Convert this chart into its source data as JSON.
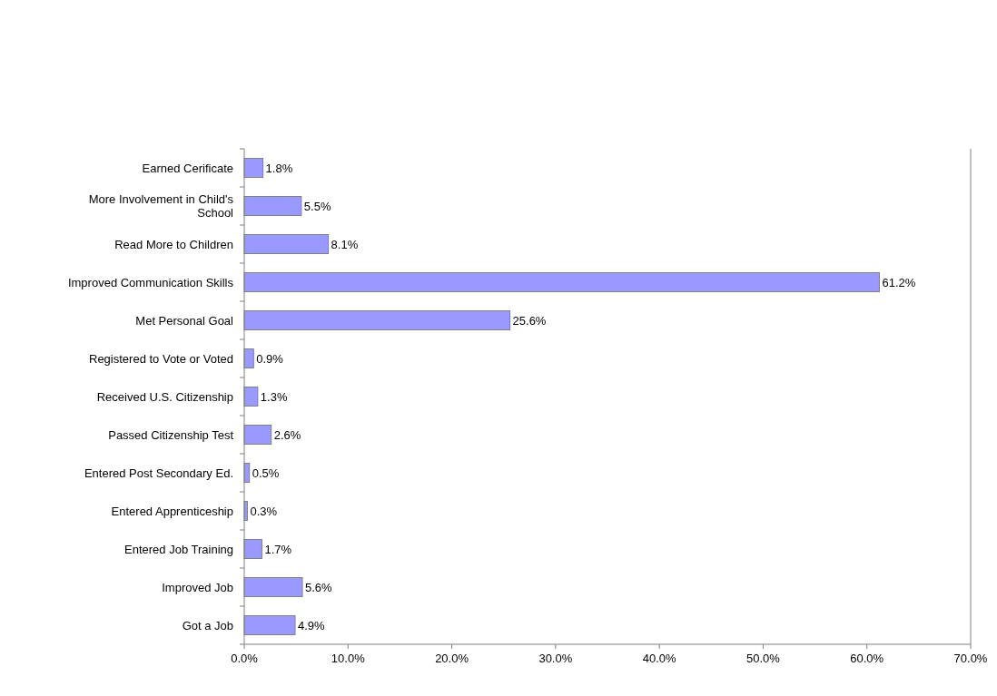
{
  "chart_data": {
    "type": "bar",
    "orientation": "horizontal",
    "categories": [
      "Earned Cerificate",
      "More Involvement in Child's School",
      "Read More to Children",
      "Improved Communication Skills",
      "Met Personal Goal",
      "Registered to Vote or Voted",
      "Received U.S. Citizenship",
      "Passed Citizenship Test",
      "Entered Post Secondary Ed.",
      "Entered Apprenticeship",
      "Entered Job Training",
      "Improved Job",
      "Got a Job"
    ],
    "values": [
      1.8,
      5.5,
      8.1,
      61.2,
      25.6,
      0.9,
      1.3,
      2.6,
      0.5,
      0.3,
      1.7,
      5.6,
      4.9
    ],
    "value_labels": [
      "1.8%",
      "5.5%",
      "8.1%",
      "61.2%",
      "25.6%",
      "0.9%",
      "1.3%",
      "2.6%",
      "0.5%",
      "0.3%",
      "1.7%",
      "5.6%",
      "4.9%"
    ],
    "color": "#9999ff",
    "xlim": [
      0,
      70
    ],
    "xticks": [
      {
        "value": 0,
        "label": "0.0%"
      },
      {
        "value": 10,
        "label": "10.0%"
      },
      {
        "value": 20,
        "label": "20.0%"
      },
      {
        "value": 30,
        "label": "30.0%"
      },
      {
        "value": 40,
        "label": "40.0%"
      },
      {
        "value": 50,
        "label": "50.0%"
      },
      {
        "value": 60,
        "label": "60.0%"
      },
      {
        "value": 70,
        "label": "70.0%"
      }
    ],
    "grid": false
  }
}
